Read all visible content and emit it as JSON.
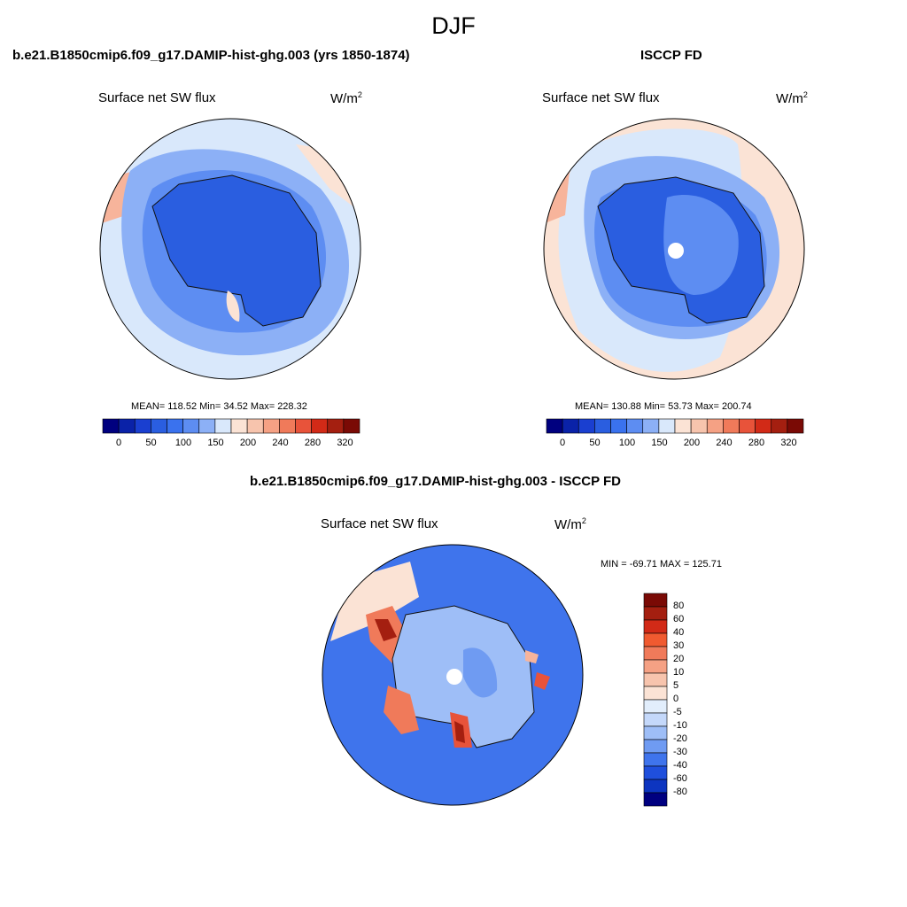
{
  "page_title": "DJF",
  "colors": {
    "land_deep": "#2a5ee0",
    "ice_light": "#5d8df2",
    "ocean_mid": "#8cb0f6",
    "ocean_light": "#d9e8fb",
    "warm_light": "#fbe3d5",
    "warm_mid": "#f7b49b",
    "warm_high": "#e8533a",
    "warm_max": "#a41f10"
  },
  "panels": [
    {
      "title": "b.e21.B1850cmip6.f09_g17.DAMIP-hist-ghg.003 (yrs 1850-1874)",
      "variable": "Surface net SW flux",
      "units_base": "W/m",
      "units_exp": "2",
      "stats": "MEAN= 118.52  Min=  34.52  Max= 228.32",
      "colorbar_labels": [
        "0",
        "50",
        "100",
        "150",
        "200",
        "240",
        "280",
        "320"
      ]
    },
    {
      "title": "ISCCP FD",
      "variable": "Surface net SW flux",
      "units_base": "W/m",
      "units_exp": "2",
      "stats": "MEAN= 130.88  Min=  53.73  Max= 200.74",
      "colorbar_labels": [
        "0",
        "50",
        "100",
        "150",
        "200",
        "240",
        "280",
        "320"
      ]
    },
    {
      "title": "b.e21.B1850cmip6.f09_g17.DAMIP-hist-ghg.003 - ISCCP FD",
      "variable": "Surface net SW flux",
      "units_base": "W/m",
      "units_exp": "2",
      "stats": "MIN = -69.71 MAX = 125.71",
      "colorbar_labels": [
        "80",
        "60",
        "40",
        "30",
        "20",
        "10",
        "5",
        "0",
        "-5",
        "-10",
        "-20",
        "-30",
        "-40",
        "-60",
        "-80"
      ]
    }
  ],
  "colorbar_colors": [
    "#00007f",
    "#0a22a8",
    "#1a3fd0",
    "#2a5ee0",
    "#3a72ee",
    "#5d8df2",
    "#8cb0f6",
    "#d9e8fb",
    "#fbe3d5",
    "#f7c4ad",
    "#f5a184",
    "#f07a5a",
    "#e8533a",
    "#d22a17",
    "#a41f10",
    "#7a0a05"
  ],
  "diff_colorbar_colors": [
    "#7a0a05",
    "#a41f10",
    "#d22a17",
    "#f05a30",
    "#f07a5a",
    "#f5a184",
    "#f7c4ad",
    "#fbe3d5",
    "#e2eefc",
    "#c4d8fa",
    "#9ebef7",
    "#6f9bf2",
    "#3f74ec",
    "#1f4fdc",
    "#0d35c0",
    "#000080"
  ]
}
